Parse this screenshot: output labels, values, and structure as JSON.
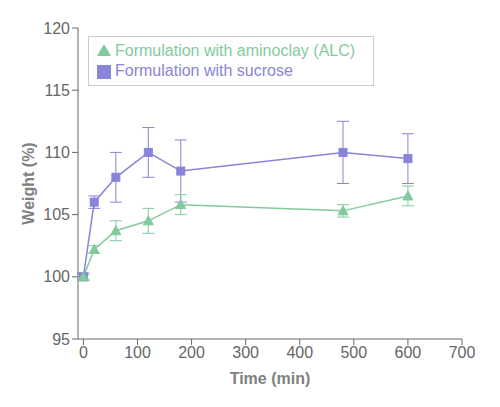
{
  "chart_data": {
    "type": "line",
    "x": [
      0,
      20,
      60,
      120,
      180,
      480,
      600
    ],
    "series": [
      {
        "name": "Formulation with sucrose",
        "values": [
          100.0,
          106.0,
          108.0,
          110.0,
          108.5,
          110.0,
          109.5
        ],
        "errors": [
          0.3,
          0.5,
          2.0,
          2.0,
          2.5,
          2.5,
          2.0
        ],
        "marker": "square"
      },
      {
        "name": "Formulation with aminoclay (ALC)",
        "values": [
          100.0,
          102.2,
          103.7,
          104.5,
          105.8,
          105.3,
          106.5
        ],
        "errors": [
          0.2,
          0.3,
          0.8,
          1.0,
          0.8,
          0.5,
          0.8
        ],
        "marker": "triangle"
      }
    ],
    "xlabel": "Time (min)",
    "ylabel": "Weight (%)",
    "xlim": [
      -10,
      700
    ],
    "ylim": [
      95,
      120
    ],
    "xticks": [
      0,
      100,
      200,
      300,
      400,
      500,
      600,
      700
    ],
    "yticks": [
      95,
      100,
      105,
      110,
      115,
      120
    ],
    "grid": false,
    "legend": "upper left"
  }
}
